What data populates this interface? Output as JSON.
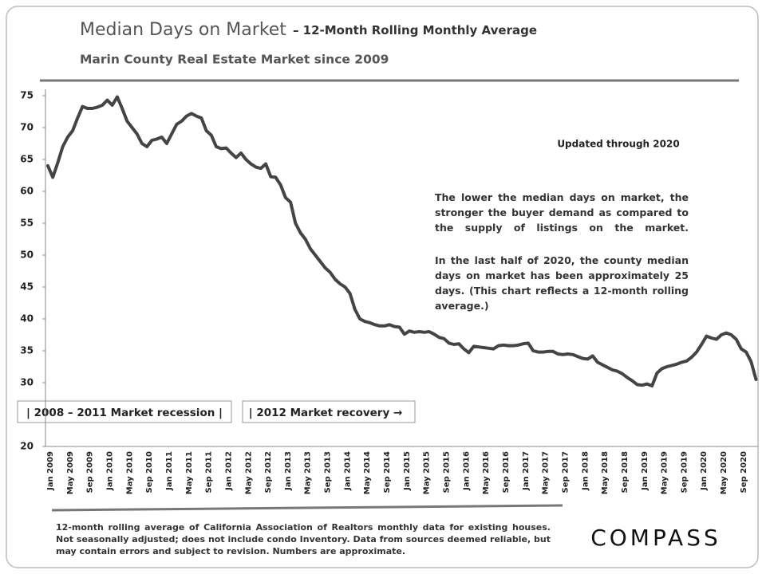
{
  "chart_data": {
    "type": "line",
    "title": "Median Days on Market",
    "title_suffix": "– 12-Month Rolling Monthly Average",
    "subtitle": "Marin County Real Estate Market since 2009",
    "annotation_updated": "Updated through 2020",
    "note_1": "The lower the median days on market, the stronger the buyer demand as compared to the supply of listings on the market.",
    "note_2": "In the last half of 2020, the county median days on market has been approximately 25 days. (This chart reflects a 12-month rolling average.)",
    "box_1": "|  2008 – 2011 Market recession  |",
    "box_2": "| 2012 Market recovery →",
    "footnote": "12-month rolling average of California Association of Realtors monthly data for existing houses. Not seasonally adjusted; does not include condo Inventory. Data from sources deemed reliable, but may contain errors and subject to revision. Numbers are approximate.",
    "logo": "COMPASS",
    "color": "#444444",
    "ylim": [
      20,
      76
    ],
    "yticks": [
      20,
      30,
      35,
      40,
      45,
      50,
      55,
      60,
      65,
      70,
      75
    ],
    "grid": false,
    "categories": [
      "Jan 2009",
      null,
      null,
      null,
      "May 2009",
      null,
      null,
      null,
      "Sep 2009",
      null,
      null,
      null,
      "Jan 2010",
      null,
      null,
      null,
      "May 2010",
      null,
      null,
      null,
      "Sep 2010",
      null,
      null,
      null,
      "Jan 2011",
      null,
      null,
      null,
      "May 2011",
      null,
      null,
      null,
      "Sep 2011",
      null,
      null,
      null,
      "Jan 2012",
      null,
      null,
      null,
      "May 2012",
      null,
      null,
      null,
      "Sep 2012",
      null,
      null,
      null,
      "Jan 2013",
      null,
      null,
      null,
      "May 2013",
      null,
      null,
      null,
      "Sep 2013",
      null,
      null,
      null,
      "Jan 2014",
      null,
      null,
      null,
      "May 2014",
      null,
      null,
      null,
      "Sep 2014",
      null,
      null,
      null,
      "Jan 2015",
      null,
      null,
      null,
      "May 2015",
      null,
      null,
      null,
      "Sep 2015",
      null,
      null,
      null,
      "Jan 2016",
      null,
      null,
      null,
      "May 2016",
      null,
      null,
      null,
      "Sep 2016",
      null,
      null,
      null,
      "Jan 2017",
      null,
      null,
      null,
      "May 2017",
      null,
      null,
      null,
      "Sep 2017",
      null,
      null,
      null,
      "Jan 2018",
      null,
      null,
      null,
      "May 2018",
      null,
      null,
      null,
      "Sep 2018",
      null,
      null,
      null,
      "Jan 2019",
      null,
      null,
      null,
      "May 2019",
      null,
      null,
      null,
      "Sep 2019",
      null,
      null,
      null,
      "Jan 2020",
      null,
      null,
      null,
      "May 2020",
      null,
      null,
      null,
      "Sep 2020",
      null,
      null,
      null
    ],
    "values": [
      64,
      62.2,
      64.5,
      67,
      68.5,
      69.5,
      71.5,
      73.3,
      73,
      73,
      73.2,
      73.5,
      74.3,
      73.5,
      74.8,
      73,
      71,
      70,
      69,
      67.5,
      67,
      68,
      68.2,
      68.5,
      67.5,
      69,
      70.5,
      71,
      71.8,
      72.2,
      71.8,
      71.5,
      69.5,
      68.8,
      67,
      66.7,
      66.8,
      66,
      65.3,
      66,
      65,
      64.3,
      63.8,
      63.6,
      64.3,
      62.3,
      62.2,
      61,
      59,
      58.3,
      55,
      53.5,
      52.5,
      51,
      50,
      49,
      48,
      47.3,
      46.2,
      45.5,
      45,
      44,
      41.5,
      40,
      39.6,
      39.4,
      39.1,
      38.9,
      38.9,
      39.1,
      38.8,
      38.7,
      37.6,
      38.1,
      37.9,
      38,
      37.9,
      38,
      37.6,
      37.1,
      36.9,
      36.2,
      36,
      36.1,
      35.3,
      34.7,
      35.7,
      35.6,
      35.5,
      35.4,
      35.3,
      35.8,
      35.9,
      35.8,
      35.8,
      35.9,
      36.1,
      36.2,
      35,
      34.8,
      34.8,
      34.9,
      34.9,
      34.5,
      34.4,
      34.5,
      34.4,
      34.1,
      33.8,
      33.7,
      34.2,
      33.2,
      32.8,
      32.4,
      32,
      31.8,
      31.4,
      30.8,
      30.3,
      29.7,
      29.6,
      29.8,
      29.5,
      31.5,
      32.2,
      32.5,
      32.7,
      32.9,
      33.2,
      33.4,
      34,
      34.8,
      36,
      37.3,
      37,
      36.8,
      37.5,
      37.8,
      37.5,
      36.8,
      35.3,
      34.8,
      33.3,
      30.5
    ]
  }
}
